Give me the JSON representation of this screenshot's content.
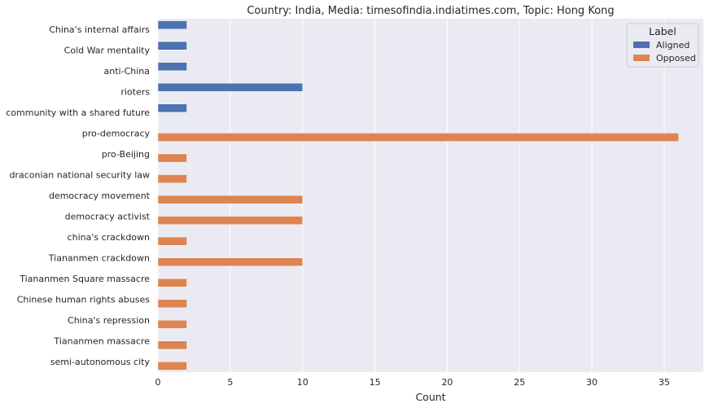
{
  "chart_data": {
    "type": "bar",
    "orientation": "horizontal",
    "title": "Country: India, Media: timesofindia.indiatimes.com, Topic: Hong Kong",
    "xlabel": "Count",
    "ylabel": "",
    "xlim": [
      0,
      37.7
    ],
    "xticks": [
      0,
      5,
      10,
      15,
      20,
      25,
      30,
      35
    ],
    "grid": true,
    "legend": {
      "title": "Label",
      "placement": "top-right"
    },
    "categories": [
      "China's internal affairs",
      "Cold War mentality",
      "anti-China",
      "rioters",
      "community with a shared future",
      "pro-democracy",
      "pro-Beijing",
      "draconian national security law",
      "democracy movement",
      "democracy activist",
      "china's crackdown",
      "Tiananmen crackdown",
      "Tiananmen Square massacre",
      "Chinese human rights abuses",
      "China's repression",
      "Tiananmen massacre",
      "semi-autonomous city"
    ],
    "series": [
      {
        "name": "Aligned",
        "color": "#4c72b0",
        "values": [
          2,
          2,
          2,
          10,
          2,
          0,
          0,
          0,
          0,
          0,
          0,
          0,
          0,
          0,
          0,
          0,
          0
        ]
      },
      {
        "name": "Opposed",
        "color": "#dd8452",
        "values": [
          0,
          0,
          0,
          0,
          0,
          36,
          2,
          2,
          10,
          10,
          2,
          10,
          2,
          2,
          2,
          2,
          2
        ]
      }
    ]
  }
}
